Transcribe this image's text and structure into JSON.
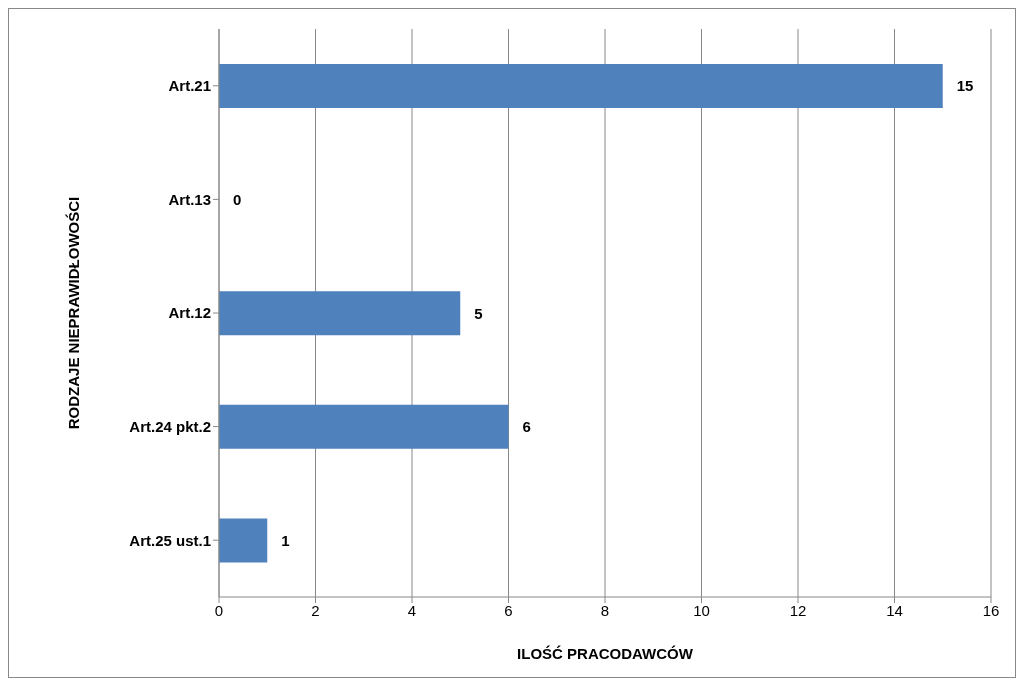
{
  "chart_data": {
    "type": "bar",
    "orientation": "horizontal",
    "categories": [
      "Art.21",
      "Art.13",
      "Art.12",
      "Art.24 pkt.2",
      "Art.25 ust.1"
    ],
    "values": [
      15,
      0,
      5,
      6,
      1
    ],
    "color": "#4f81bd",
    "xlim": [
      0,
      16
    ],
    "xticks": [
      0,
      2,
      4,
      6,
      8,
      10,
      12,
      14,
      16
    ],
    "grid": "x",
    "data_labels": true,
    "xlabel": "ILOŚĆ PRACODAWCÓW",
    "ylabel": "RODZAJE NIEPRAWIDŁOWOŚCI"
  }
}
